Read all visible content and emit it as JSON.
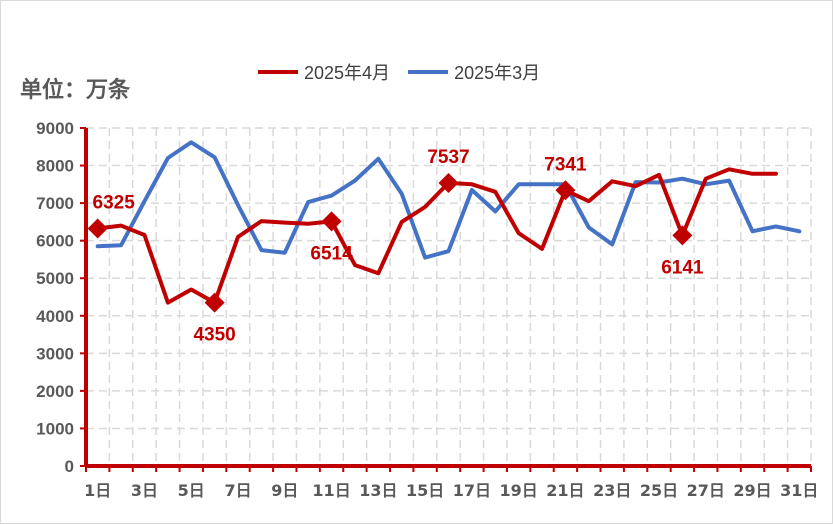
{
  "unit_label": "单位：万条",
  "colors": {
    "april": "#c00000",
    "march": "#4472c4",
    "grid": "#d9d9d9",
    "axis": "#c00000"
  },
  "chart_data": {
    "type": "line",
    "ylim": [
      0,
      9000
    ],
    "yticks": [
      "0",
      "1000",
      "2000",
      "3000",
      "4000",
      "5000",
      "6000",
      "7000",
      "8000",
      "9000"
    ],
    "x": [
      1,
      2,
      3,
      4,
      5,
      6,
      7,
      8,
      9,
      10,
      11,
      12,
      13,
      14,
      15,
      16,
      17,
      18,
      19,
      20,
      21,
      22,
      23,
      24,
      25,
      26,
      27,
      28,
      29,
      30,
      31
    ],
    "xtick_labels": [
      "1日",
      "3日",
      "5日",
      "7日",
      "9日",
      "11日",
      "13日",
      "15日",
      "17日",
      "19日",
      "21日",
      "23日",
      "25日",
      "27日",
      "29日",
      "31日"
    ],
    "grid": true,
    "legend_position": "top",
    "series": [
      {
        "name": "2025年4月",
        "color": "#c00000",
        "values": [
          6325,
          6400,
          6150,
          4350,
          4700,
          4350,
          6100,
          6520,
          6480,
          6450,
          6514,
          5350,
          5130,
          6500,
          6900,
          7537,
          7500,
          7300,
          6200,
          5780,
          7341,
          7050,
          7580,
          7450,
          7750,
          6141,
          7650,
          7900,
          7780,
          7780,
          null
        ]
      },
      {
        "name": "2025年3月",
        "color": "#4472c4",
        "values": [
          5850,
          5880,
          7050,
          8200,
          8620,
          8220,
          6950,
          5750,
          5680,
          7030,
          7200,
          7600,
          8180,
          7250,
          5550,
          5720,
          7350,
          6780,
          7500,
          7500,
          7500,
          6350,
          5900,
          7560,
          7550,
          7650,
          7500,
          7600,
          6250,
          6380,
          6250
        ]
      }
    ],
    "highlights": [
      {
        "day": 1,
        "value": 6325,
        "label": "6325",
        "pos": "above"
      },
      {
        "day": 6,
        "value": 4350,
        "label": "4350",
        "pos": "below"
      },
      {
        "day": 11,
        "value": 6514,
        "label": "6514",
        "pos": "below"
      },
      {
        "day": 16,
        "value": 7537,
        "label": "7537",
        "pos": "above"
      },
      {
        "day": 21,
        "value": 7341,
        "label": "7341",
        "pos": "above"
      },
      {
        "day": 26,
        "value": 6141,
        "label": "6141",
        "pos": "below"
      }
    ]
  }
}
